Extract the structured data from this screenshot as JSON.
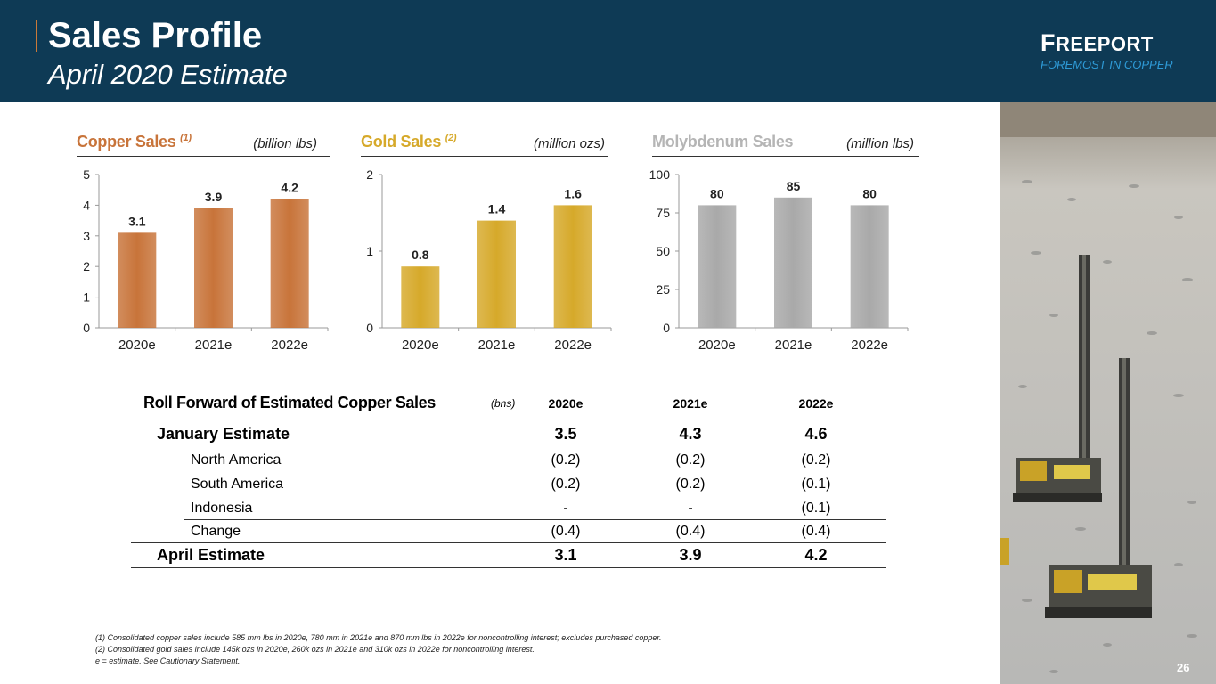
{
  "header": {
    "title": "Sales Profile",
    "subtitle": "April 2020 Estimate",
    "logo_name": "Freeport",
    "logo_tagline": "FOREMOST IN COPPER"
  },
  "charts": {
    "copper": {
      "title": "Copper Sales",
      "note": "(1)",
      "unit": "(billion lbs)",
      "color": "#c8743a"
    },
    "gold": {
      "title": "Gold Sales",
      "note": "(2)",
      "unit": "(million ozs)",
      "color": "#d6a92a"
    },
    "moly": {
      "title": "Molybdenum Sales",
      "note": "",
      "unit": "(million lbs)",
      "color": "#a9a9a9"
    }
  },
  "chart_data": [
    {
      "type": "bar",
      "title": "Copper Sales (1)",
      "ylabel": "(billion lbs)",
      "categories": [
        "2020e",
        "2021e",
        "2022e"
      ],
      "values": [
        3.1,
        3.9,
        4.2
      ],
      "labels": [
        "3.1",
        "3.9",
        "4.2"
      ],
      "ylim": [
        0,
        5
      ],
      "yticks": [
        0,
        1,
        2,
        3,
        4,
        5
      ],
      "color": "#c8743a"
    },
    {
      "type": "bar",
      "title": "Gold Sales (2)",
      "ylabel": "(million ozs)",
      "categories": [
        "2020e",
        "2021e",
        "2022e"
      ],
      "values": [
        0.8,
        1.4,
        1.6
      ],
      "labels": [
        "0.8",
        "1.4",
        "1.6"
      ],
      "ylim": [
        0,
        2
      ],
      "yticks": [
        0,
        1,
        2
      ],
      "color": "#d6a92a"
    },
    {
      "type": "bar",
      "title": "Molybdenum Sales",
      "ylabel": "(million lbs)",
      "categories": [
        "2020e",
        "2021e",
        "2022e"
      ],
      "values": [
        80,
        85,
        80
      ],
      "labels": [
        "80",
        "85",
        "80"
      ],
      "ylim": [
        0,
        100
      ],
      "yticks": [
        0,
        25,
        50,
        75,
        100
      ],
      "color": "#a9a9a9"
    },
    {
      "type": "table",
      "title": "Roll Forward of Estimated Copper Sales",
      "unit": "(bns)",
      "columns": [
        "2020e",
        "2021e",
        "2022e"
      ],
      "rows": [
        {
          "label": "January Estimate",
          "values": [
            "3.5",
            "4.3",
            "4.6"
          ]
        },
        {
          "label": "North America",
          "values": [
            "(0.2)",
            "(0.2)",
            "(0.2)"
          ]
        },
        {
          "label": "South America",
          "values": [
            "(0.2)",
            "(0.2)",
            "(0.1)"
          ]
        },
        {
          "label": "Indonesia",
          "values": [
            "-",
            "-",
            "(0.1)"
          ]
        },
        {
          "label": "Change",
          "values": [
            "(0.4)",
            "(0.4)",
            "(0.4)"
          ]
        },
        {
          "label": "April Estimate",
          "values": [
            "3.1",
            "3.9",
            "4.2"
          ]
        }
      ]
    }
  ],
  "footnotes": [
    "(1)  Consolidated copper sales include 585 mm lbs in 2020e, 780 mm in 2021e and 870 mm lbs in 2022e for noncontrolling interest; excludes purchased copper.",
    "(2)  Consolidated gold sales include 145k ozs in 2020e, 260k ozs in 2021e and 310k ozs in 2022e for noncontrolling interest.",
    "e = estimate. See Cautionary Statement."
  ],
  "page_number": "26"
}
